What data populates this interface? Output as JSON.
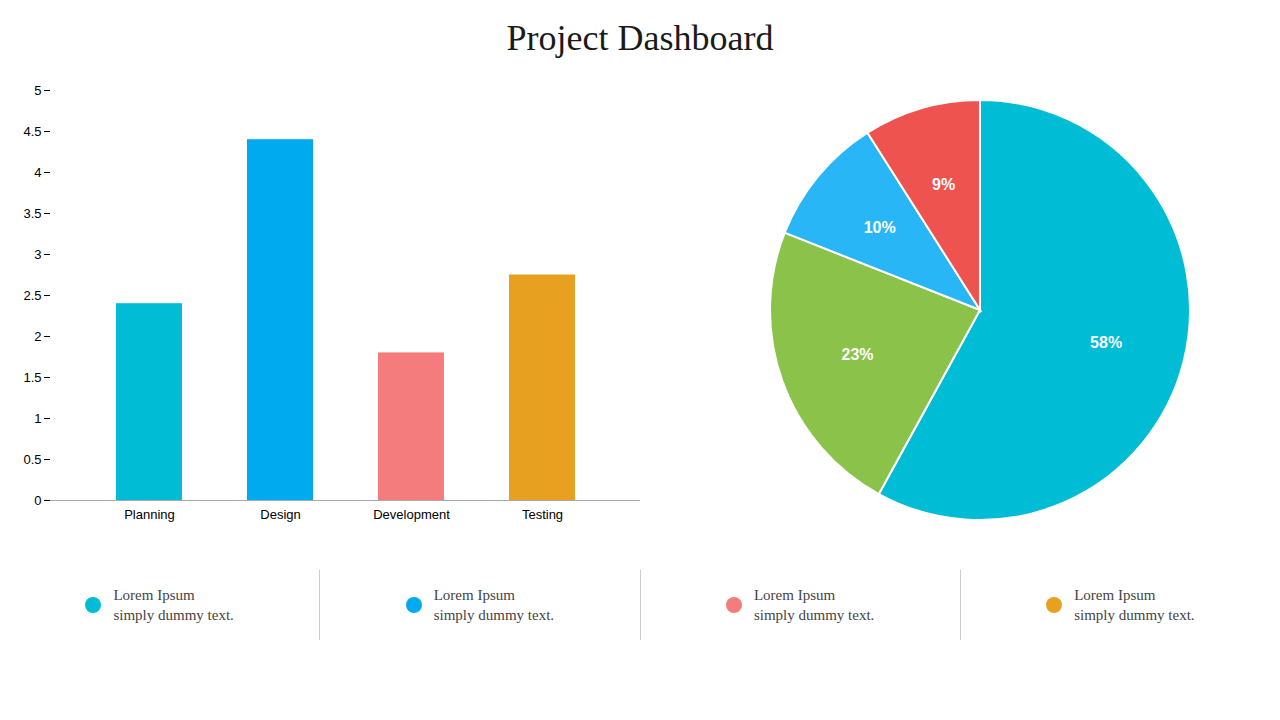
{
  "title": "Project Dashboard",
  "chart_data": [
    {
      "type": "bar",
      "categories": [
        "Planning",
        "Design",
        "Development",
        "Testing"
      ],
      "values": [
        2.4,
        4.4,
        1.8,
        2.75
      ],
      "colors": [
        "#00bcd4",
        "#00aaee",
        "#f47c7c",
        "#e8a020"
      ],
      "ylim": [
        0,
        5
      ],
      "yticks": [
        0,
        0.5,
        1,
        1.5,
        2,
        2.5,
        3,
        3.5,
        4,
        4.5,
        5
      ],
      "grid": false
    },
    {
      "type": "pie",
      "values": [
        58,
        23,
        10,
        9
      ],
      "value_labels": [
        "58%",
        "23%",
        "10%",
        "9%"
      ],
      "colors": [
        "#00bcd4",
        "#8bc34a",
        "#29b6f6",
        "#ef5350"
      ],
      "data_labels": true
    }
  ],
  "legend_entries": [
    {
      "name": "Lorem Ipsum",
      "text": "simply dummy text.",
      "color": "#00bcd4"
    },
    {
      "name": "Lorem Ipsum",
      "text": "simply dummy text.",
      "color": "#00aaee"
    },
    {
      "name": "Lorem Ipsum",
      "text": "simply dummy text.",
      "color": "#f47c7c"
    },
    {
      "name": "Lorem Ipsum",
      "text": "simply dummy text.",
      "color": "#e8a020"
    }
  ]
}
